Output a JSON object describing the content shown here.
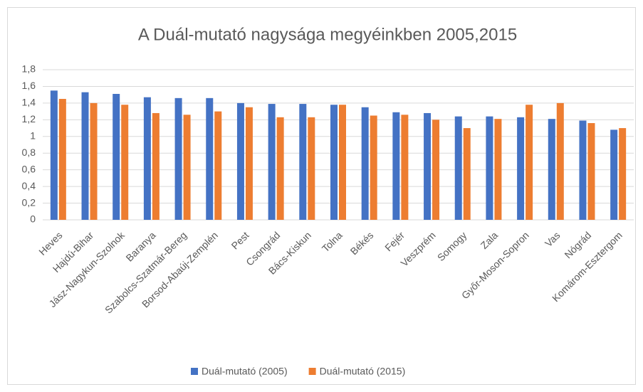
{
  "chart_data": {
    "type": "bar",
    "title": "A Duál-mutató nagysága megyéinkben 2005,2015",
    "categories": [
      "Heves",
      "Hajdú-Bihar",
      "Jász-Nagykun-Szolnok",
      "Baranya",
      "Szabolcs-Szatmár-Bereg",
      "Borsod-Abaúj-Zemplén",
      "Pest",
      "Csongrád",
      "Bács-Kiskun",
      "Tolna",
      "Békés",
      "Fejér",
      "Veszprém",
      "Somogy",
      "Zala",
      "Győr-Moson-Sopron",
      "Vas",
      "Nógrád",
      "Komárom-Esztergom"
    ],
    "series": [
      {
        "name": "Duál-mutató (2005)",
        "color": "#4472c4",
        "values": [
          1.55,
          1.53,
          1.51,
          1.47,
          1.46,
          1.46,
          1.4,
          1.39,
          1.39,
          1.38,
          1.35,
          1.29,
          1.28,
          1.24,
          1.24,
          1.23,
          1.21,
          1.19,
          1.08
        ]
      },
      {
        "name": "Duál-mutató (2015)",
        "color": "#ed7d31",
        "values": [
          1.45,
          1.4,
          1.38,
          1.28,
          1.26,
          1.3,
          1.35,
          1.23,
          1.23,
          1.38,
          1.25,
          1.26,
          1.2,
          1.1,
          1.21,
          1.38,
          1.4,
          1.16,
          1.1
        ]
      }
    ],
    "ylim": [
      0,
      1.8
    ],
    "yticks": [
      0,
      {
        "value": 0.2,
        "label": "0,2"
      },
      {
        "value": 0.4,
        "label": "0,4"
      },
      {
        "value": 0.6,
        "label": "0,6"
      },
      {
        "value": 0.8,
        "label": "0,8"
      },
      1,
      {
        "value": 1.2,
        "label": "1,2"
      },
      {
        "value": 1.4,
        "label": "1,4"
      },
      {
        "value": 1.6,
        "label": "1,6"
      },
      {
        "value": 1.8,
        "label": "1,8"
      }
    ],
    "grid": true,
    "legend": "bottom"
  }
}
